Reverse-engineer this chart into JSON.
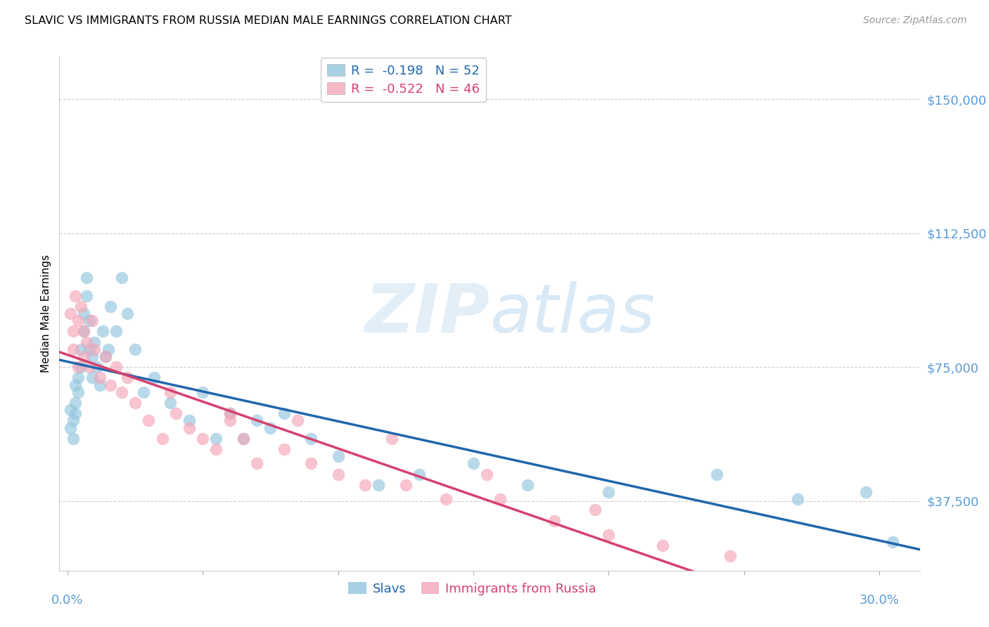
{
  "title": "SLAVIC VS IMMIGRANTS FROM RUSSIA MEDIAN MALE EARNINGS CORRELATION CHART",
  "source": "Source: ZipAtlas.com",
  "ylabel": "Median Male Earnings",
  "ytick_labels": [
    "$37,500",
    "$75,000",
    "$112,500",
    "$150,000"
  ],
  "ytick_values": [
    37500,
    75000,
    112500,
    150000
  ],
  "ymin": 18000,
  "ymax": 162000,
  "xmin": -0.003,
  "xmax": 0.315,
  "watermark_zip": "ZIP",
  "watermark_atlas": "atlas",
  "legend_line1": "R =  -0.198   N = 52",
  "legend_line2": "R =  -0.522   N = 46",
  "slavs_color": "#92c5de",
  "russia_color": "#f4a5b8",
  "slavs_line_color": "#2166ac",
  "russia_line_color": "#d6416e",
  "background_color": "#ffffff",
  "grid_color": "#cccccc",
  "slavs_x": [
    0.001,
    0.001,
    0.002,
    0.002,
    0.003,
    0.003,
    0.003,
    0.004,
    0.004,
    0.005,
    0.005,
    0.006,
    0.006,
    0.007,
    0.007,
    0.008,
    0.008,
    0.009,
    0.009,
    0.01,
    0.011,
    0.012,
    0.013,
    0.014,
    0.015,
    0.016,
    0.018,
    0.02,
    0.022,
    0.025,
    0.028,
    0.032,
    0.038,
    0.045,
    0.05,
    0.055,
    0.06,
    0.065,
    0.07,
    0.075,
    0.08,
    0.09,
    0.1,
    0.115,
    0.13,
    0.15,
    0.17,
    0.2,
    0.24,
    0.27,
    0.295,
    0.305
  ],
  "slavs_y": [
    63000,
    58000,
    60000,
    55000,
    65000,
    70000,
    62000,
    68000,
    72000,
    75000,
    80000,
    85000,
    90000,
    95000,
    100000,
    88000,
    80000,
    72000,
    78000,
    82000,
    75000,
    70000,
    85000,
    78000,
    80000,
    92000,
    85000,
    100000,
    90000,
    80000,
    68000,
    72000,
    65000,
    60000,
    68000,
    55000,
    62000,
    55000,
    60000,
    58000,
    62000,
    55000,
    50000,
    42000,
    45000,
    48000,
    42000,
    40000,
    45000,
    38000,
    40000,
    26000
  ],
  "russia_x": [
    0.001,
    0.002,
    0.002,
    0.003,
    0.004,
    0.004,
    0.005,
    0.006,
    0.006,
    0.007,
    0.008,
    0.009,
    0.01,
    0.012,
    0.014,
    0.016,
    0.018,
    0.02,
    0.022,
    0.025,
    0.03,
    0.035,
    0.04,
    0.045,
    0.05,
    0.055,
    0.06,
    0.065,
    0.07,
    0.08,
    0.09,
    0.1,
    0.11,
    0.125,
    0.14,
    0.16,
    0.18,
    0.2,
    0.22,
    0.245,
    0.195,
    0.155,
    0.12,
    0.085,
    0.06,
    0.038
  ],
  "russia_y": [
    90000,
    85000,
    80000,
    95000,
    88000,
    75000,
    92000,
    85000,
    78000,
    82000,
    75000,
    88000,
    80000,
    72000,
    78000,
    70000,
    75000,
    68000,
    72000,
    65000,
    60000,
    55000,
    62000,
    58000,
    55000,
    52000,
    60000,
    55000,
    48000,
    52000,
    48000,
    45000,
    42000,
    42000,
    38000,
    38000,
    32000,
    28000,
    25000,
    22000,
    35000,
    45000,
    55000,
    60000,
    62000,
    68000
  ]
}
